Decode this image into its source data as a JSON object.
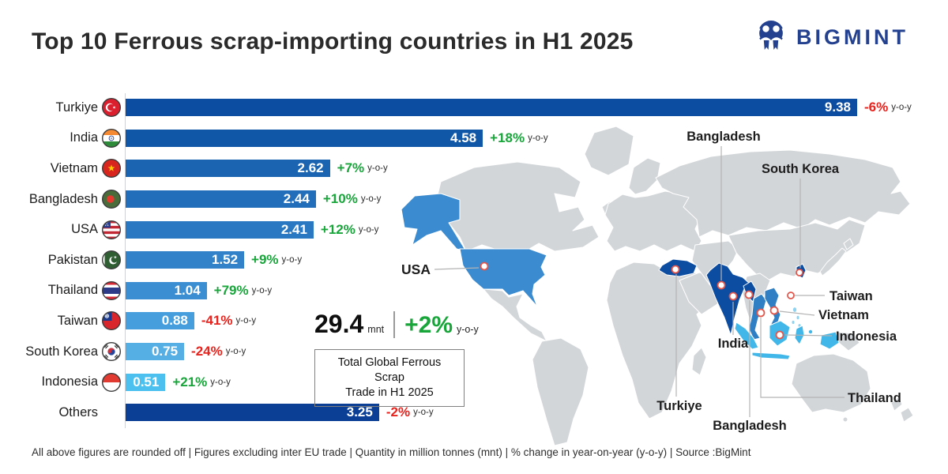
{
  "header": {
    "title": "Top 10 Ferrous scrap-importing countries in H1 2025",
    "logo_text": "BIGMINT"
  },
  "colors": {
    "green": "#18a53a",
    "red": "#e8231d",
    "navy": "#0d4da1",
    "map_base": "#d3d6d9",
    "logo_navy": "#24418f",
    "marker_ring": "#e2574c"
  },
  "chart_data": {
    "type": "bar",
    "orientation": "horizontal",
    "title": "Top 10 Ferrous scrap-importing countries in H1 2025",
    "unit": "million tonnes (mnt)",
    "xlim": [
      0,
      9.38
    ],
    "grid": false,
    "categories": [
      "Turkiye",
      "India",
      "Vietnam",
      "Bangladesh",
      "USA",
      "Pakistan",
      "Thailand",
      "Taiwan",
      "South Korea",
      "Indonesia",
      "Others"
    ],
    "series": [
      {
        "name": "Imports H1 2025 (mnt)",
        "values": [
          9.38,
          4.58,
          2.62,
          2.44,
          2.41,
          1.52,
          1.04,
          0.88,
          0.75,
          0.51,
          3.25
        ]
      },
      {
        "name": "y-o-y change (%)",
        "values": [
          -6,
          18,
          7,
          10,
          12,
          9,
          79,
          -41,
          -24,
          21,
          -2
        ]
      }
    ],
    "total": {
      "value": 29.4,
      "unit": "mnt",
      "yoy_change_pct": 2,
      "label": "Total Global Ferrous Scrap Trade in H1 2025"
    }
  },
  "bars": {
    "yoy_suffix": "y-o-y",
    "rows": [
      {
        "label": "Turkiye",
        "flag": "turkiye",
        "value": "9.38",
        "num": 9.38,
        "change": "-6%",
        "dir": "down",
        "color": "#0d4da1"
      },
      {
        "label": "India",
        "flag": "india",
        "value": "4.58",
        "num": 4.58,
        "change": "+18%",
        "dir": "up",
        "color": "#1157a7"
      },
      {
        "label": "Vietnam",
        "flag": "vietnam",
        "value": "2.62",
        "num": 2.62,
        "change": "+7%",
        "dir": "up",
        "color": "#1b64b2"
      },
      {
        "label": "Bangladesh",
        "flag": "bangladesh",
        "value": "2.44",
        "num": 2.44,
        "change": "+10%",
        "dir": "up",
        "color": "#236eba"
      },
      {
        "label": "USA",
        "flag": "usa",
        "value": "2.41",
        "num": 2.41,
        "change": "+12%",
        "dir": "up",
        "color": "#2b78c2"
      },
      {
        "label": "Pakistan",
        "flag": "pakistan",
        "value": "1.52",
        "num": 1.52,
        "change": "+9%",
        "dir": "up",
        "color": "#3282c9"
      },
      {
        "label": "Thailand",
        "flag": "thailand",
        "value": "1.04",
        "num": 1.04,
        "change": "+79%",
        "dir": "up",
        "color": "#3b8ed2"
      },
      {
        "label": "Taiwan",
        "flag": "taiwan",
        "value": "0.88",
        "num": 0.88,
        "change": "-41%",
        "dir": "down",
        "color": "#469fdc"
      },
      {
        "label": "South Korea",
        "flag": "south-korea",
        "value": "0.75",
        "num": 0.75,
        "change": "-24%",
        "dir": "down",
        "color": "#55afe5"
      },
      {
        "label": "Indonesia",
        "flag": "indonesia",
        "value": "0.51",
        "num": 0.51,
        "change": "+21%",
        "dir": "up",
        "color": "#4cc1ef"
      },
      {
        "label": "Others",
        "flag": null,
        "value": "3.25",
        "num": 3.25,
        "change": "-2%",
        "dir": "down",
        "color": "#0a3f95"
      }
    ]
  },
  "stats": {
    "total_value": "29.4",
    "total_unit": "mnt",
    "total_change": "+2%",
    "yoy": "y-o-y",
    "box_line1": "Total Global Ferrous Scrap",
    "box_line2": "Trade in H1 2025"
  },
  "map": {
    "labels": [
      {
        "id": "bangladesh-top",
        "text": "Bangladesh"
      },
      {
        "id": "south-korea",
        "text": "South Korea"
      },
      {
        "id": "usa",
        "text": "USA"
      },
      {
        "id": "taiwan",
        "text": "Taiwan"
      },
      {
        "id": "vietnam",
        "text": "Vietnam"
      },
      {
        "id": "indonesia",
        "text": "Indonesia"
      },
      {
        "id": "india",
        "text": "India"
      },
      {
        "id": "turkiye",
        "text": "Turkiye"
      },
      {
        "id": "bangladesh-bottom",
        "text": "Bangladesh"
      },
      {
        "id": "thailand",
        "text": "Thailand"
      }
    ]
  },
  "footer": {
    "text": "All above figures are rounded off  |  Figures excluding inter EU trade   |  Quantity in million tonnes (mnt)  |  % change in year-on-year (y-o-y)  |  Source :BigMint"
  }
}
